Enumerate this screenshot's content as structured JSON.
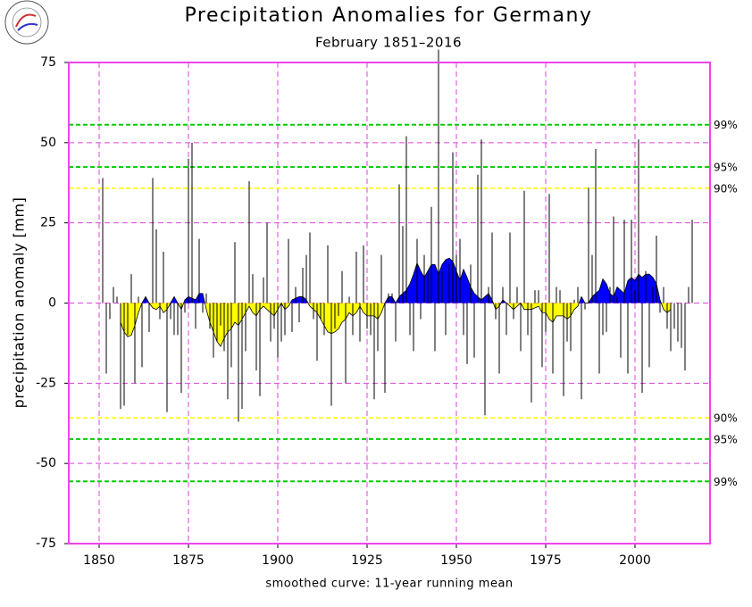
{
  "chart_data": {
    "type": "bar-smoothed",
    "title": "Precipitation Anomalies for Germany",
    "subtitle": "February 1851–2016",
    "ylabel": "precipitation anomaly [mm]",
    "footer": "smoothed curve: 11-year running mean",
    "xlim": [
      1841.5,
      2021
    ],
    "xticks": [
      1850,
      1875,
      1900,
      1925,
      1950,
      1975,
      2000
    ],
    "ylim": [
      -75,
      75
    ],
    "yticks": [
      -75,
      -50,
      -25,
      0,
      25,
      50,
      75
    ],
    "grid": true,
    "grid_color": "#dd44dd",
    "frame_color": "#ee44ee",
    "x": [
      1851,
      1852,
      1853,
      1854,
      1855,
      1856,
      1857,
      1858,
      1859,
      1860,
      1861,
      1862,
      1863,
      1864,
      1865,
      1866,
      1867,
      1868,
      1869,
      1870,
      1871,
      1872,
      1873,
      1874,
      1875,
      1876,
      1877,
      1878,
      1879,
      1880,
      1881,
      1882,
      1883,
      1884,
      1885,
      1886,
      1887,
      1888,
      1889,
      1890,
      1891,
      1892,
      1893,
      1894,
      1895,
      1896,
      1897,
      1898,
      1899,
      1900,
      1901,
      1902,
      1903,
      1904,
      1905,
      1906,
      1907,
      1908,
      1909,
      1910,
      1911,
      1912,
      1913,
      1914,
      1915,
      1916,
      1917,
      1918,
      1919,
      1920,
      1921,
      1922,
      1923,
      1924,
      1925,
      1926,
      1927,
      1928,
      1929,
      1930,
      1931,
      1932,
      1933,
      1934,
      1935,
      1936,
      1937,
      1938,
      1939,
      1940,
      1941,
      1942,
      1943,
      1944,
      1945,
      1946,
      1947,
      1948,
      1949,
      1950,
      1951,
      1952,
      1953,
      1954,
      1955,
      1956,
      1957,
      1958,
      1959,
      1960,
      1961,
      1962,
      1963,
      1964,
      1965,
      1966,
      1967,
      1968,
      1969,
      1970,
      1971,
      1972,
      1973,
      1974,
      1975,
      1976,
      1977,
      1978,
      1979,
      1980,
      1981,
      1982,
      1983,
      1984,
      1985,
      1986,
      1987,
      1988,
      1989,
      1990,
      1991,
      1992,
      1993,
      1994,
      1995,
      1996,
      1997,
      1998,
      1999,
      2000,
      2001,
      2002,
      2003,
      2004,
      2005,
      2006,
      2007,
      2008,
      2009,
      2010,
      2011,
      2012,
      2013,
      2014,
      2015,
      2016
    ],
    "values": [
      39,
      -22,
      -5,
      5,
      2,
      -33,
      -32,
      -10,
      9,
      -25,
      2,
      -20,
      2,
      -9,
      39,
      23,
      -5,
      16,
      -34,
      -5,
      -10,
      -10,
      -28,
      -3,
      45,
      50,
      -8,
      20,
      -3,
      3,
      -8,
      -17,
      -12,
      -7,
      -15,
      -30,
      -20,
      19,
      -37,
      -33,
      -15,
      38,
      9,
      -21,
      -29,
      8,
      25,
      -12,
      -8,
      -17,
      -12,
      -10,
      20,
      -9,
      5,
      -6,
      11,
      15,
      22,
      -5,
      -18,
      -5,
      -10,
      18,
      -32,
      -8,
      -4,
      10,
      -25,
      2,
      -10,
      16,
      -12,
      18,
      -8,
      -10,
      -30,
      -15,
      15,
      -28,
      3,
      3,
      -12,
      37,
      24,
      52,
      -10,
      -15,
      20,
      -5,
      15,
      10,
      30,
      -15,
      79,
      10,
      -10,
      12,
      47,
      15,
      20,
      -10,
      -19,
      12,
      -17,
      40,
      51,
      -35,
      5,
      22,
      -5,
      -22,
      5,
      -10,
      22,
      -5,
      5,
      -15,
      35,
      -10,
      -31,
      4,
      4,
      -20,
      -9,
      34,
      -22,
      5,
      4,
      -29,
      -12,
      -15,
      1,
      5,
      -30,
      -2,
      36,
      15,
      48,
      -22,
      -10,
      -9,
      5,
      27,
      2,
      -17,
      26,
      -22,
      26,
      4,
      51,
      -28,
      10,
      -20,
      5,
      21,
      -3,
      5,
      -8,
      -15,
      -8,
      -12,
      -14,
      -21,
      5,
      26
    ],
    "bar_color": "#000000",
    "smoothed": [
      null,
      null,
      null,
      null,
      null,
      -6,
      -9,
      -10.5,
      -10,
      -7,
      -3,
      0,
      2,
      0,
      -1.5,
      -2,
      -1,
      -3,
      -2,
      0,
      2,
      0,
      -2,
      1,
      2,
      1.5,
      1,
      3,
      3,
      -2,
      -6,
      -9,
      -12,
      -13.5,
      -11,
      -9,
      -8,
      -6,
      -7,
      -5,
      -3,
      -1,
      -3,
      -4,
      -2,
      -1,
      -2,
      -3,
      -4,
      -2,
      0,
      -2,
      -1,
      1,
      1.5,
      2,
      2,
      1,
      -1,
      -2,
      -3,
      -5,
      -7,
      -9,
      -9.5,
      -9,
      -8,
      -6,
      -5,
      -3,
      -4,
      -3,
      -1,
      -3,
      -4,
      -4,
      -4,
      -5,
      -3,
      0,
      2,
      2,
      0,
      2,
      3,
      4,
      6,
      9,
      12.5,
      10,
      8,
      10,
      12,
      12,
      9,
      12,
      13.5,
      14,
      13,
      10,
      7,
      10.5,
      8,
      5,
      3,
      2,
      1,
      2,
      3,
      1,
      -2,
      -1,
      1,
      0,
      -1,
      -2,
      -1,
      0,
      -2,
      -2,
      -2,
      -1.5,
      -1,
      -3,
      -3,
      -5,
      -6,
      -4,
      -4,
      -4,
      -5,
      -4,
      -2,
      -1,
      2,
      0,
      0,
      2,
      3,
      4,
      7.5,
      6,
      3,
      2,
      5,
      4,
      3,
      7,
      8,
      7,
      9,
      8,
      9,
      9,
      8,
      6,
      1,
      -2,
      -3,
      -2,
      null,
      null,
      null,
      null,
      null,
      null
    ],
    "positive_color": "#0000ff",
    "negative_color": "#ffff00",
    "thresholds": [
      {
        "name": "99%",
        "value": 55.6,
        "color": "#00cc00"
      },
      {
        "name": "95%",
        "value": 42.4,
        "color": "#00cc00"
      },
      {
        "name": "90%",
        "value": 35.8,
        "color": "#ffff33"
      },
      {
        "name": "90%",
        "value": -35.8,
        "color": "#ffff33"
      },
      {
        "name": "95%",
        "value": -42.4,
        "color": "#00cc00"
      },
      {
        "name": "99%",
        "value": -55.6,
        "color": "#00cc00"
      }
    ]
  }
}
